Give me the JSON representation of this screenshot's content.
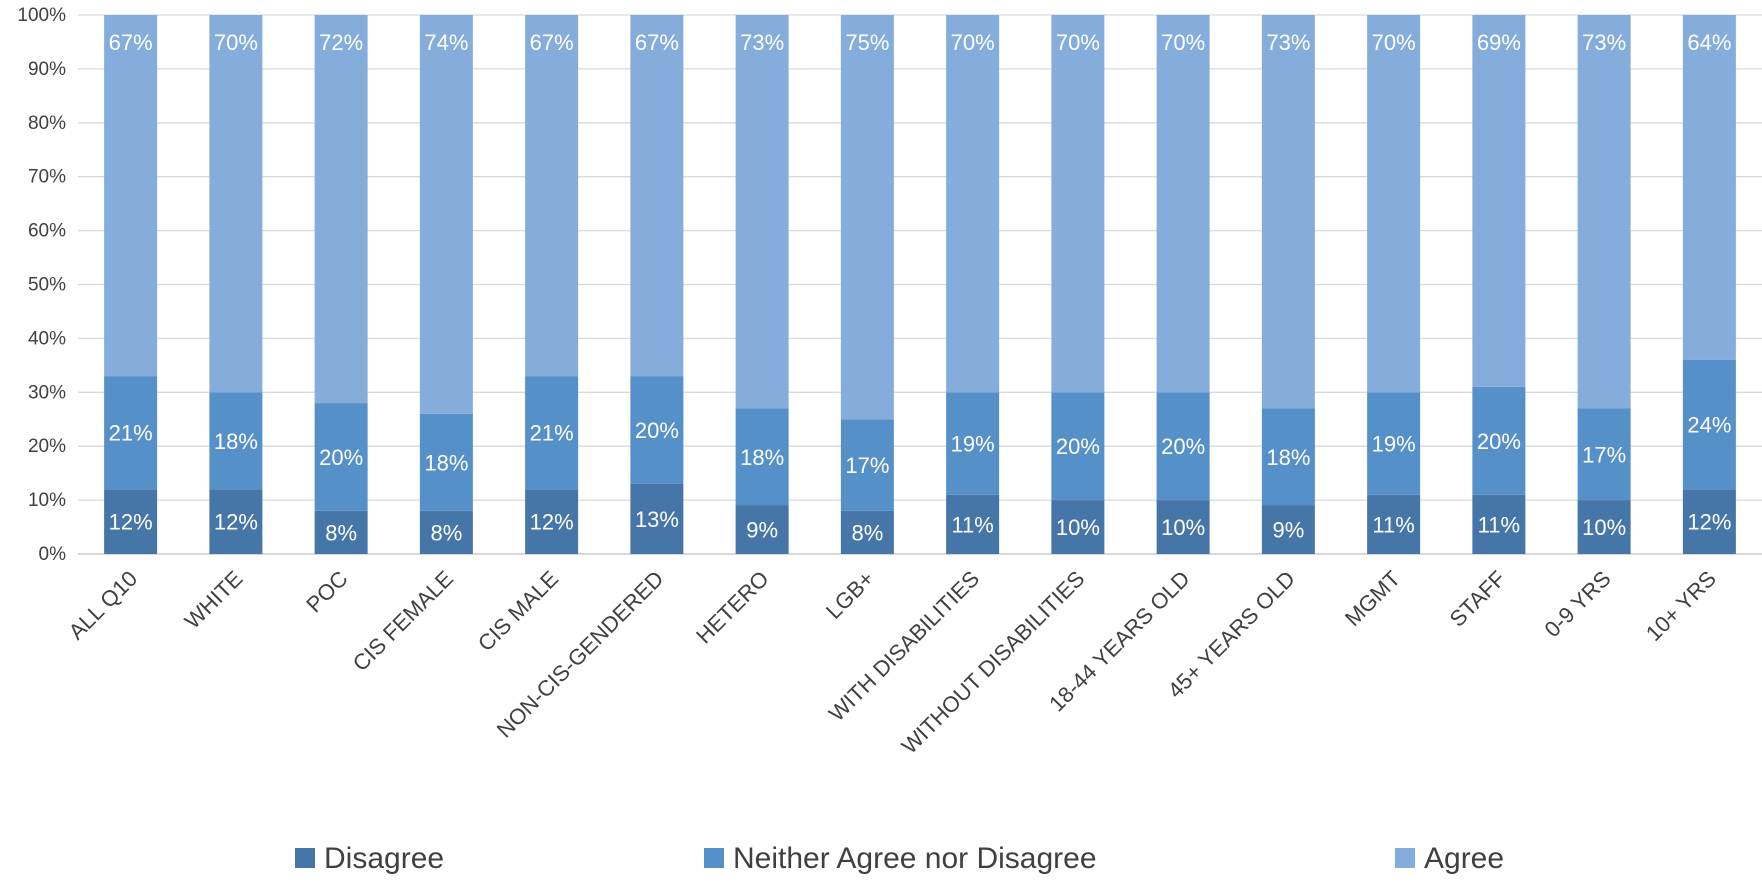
{
  "chart_data": {
    "type": "bar",
    "stacked": true,
    "categories": [
      "ALL Q10",
      "WHITE",
      "POC",
      "CIS FEMALE",
      "CIS MALE",
      "NON-CIS-GENDERED",
      "HETERO",
      "LGB+",
      "WITH DISABILITIES",
      "WITHOUT DISABILITIES",
      "18-44 YEARS OLD",
      "45+ YEARS OLD",
      "MGMT",
      "STAFF",
      "0-9 YRS",
      "10+ YRS"
    ],
    "series": [
      {
        "name": "Disagree",
        "color": "#4676A8",
        "values": [
          12,
          12,
          8,
          8,
          12,
          13,
          9,
          8,
          11,
          10,
          10,
          9,
          11,
          11,
          10,
          12
        ],
        "labels": [
          "12%",
          "12%",
          "8%",
          "8%",
          "12%",
          "13%",
          "9%",
          "8%",
          "11%",
          "10%",
          "10%",
          "9%",
          "11%",
          "11%",
          "10%",
          "12%"
        ]
      },
      {
        "name": "Neither Agree nor Disagree",
        "color": "#5590C8",
        "values": [
          21,
          18,
          20,
          18,
          21,
          20,
          18,
          17,
          19,
          20,
          20,
          18,
          19,
          20,
          17,
          24
        ],
        "labels": [
          "21%",
          "18%",
          "20%",
          "18%",
          "21%",
          "20%",
          "18%",
          "17%",
          "19%",
          "20%",
          "20%",
          "18%",
          "19%",
          "20%",
          "17%",
          "24%"
        ]
      },
      {
        "name": "Agree",
        "color": "#84ADDC",
        "values": [
          67,
          70,
          72,
          74,
          67,
          67,
          73,
          75,
          70,
          70,
          70,
          73,
          70,
          69,
          73,
          64
        ],
        "labels": [
          "67%",
          "70%",
          "72%",
          "74%",
          "67%",
          "67%",
          "73%",
          "75%",
          "70%",
          "70%",
          "70%",
          "73%",
          "70%",
          "69%",
          "73%",
          "64%"
        ]
      }
    ],
    "yticks": [
      "0%",
      "10%",
      "20%",
      "30%",
      "40%",
      "50%",
      "60%",
      "70%",
      "80%",
      "90%",
      "100%"
    ],
    "ylim": [
      0,
      100
    ],
    "grid": true,
    "legend": "bottom",
    "title": "",
    "xlabel": "",
    "ylabel": ""
  }
}
